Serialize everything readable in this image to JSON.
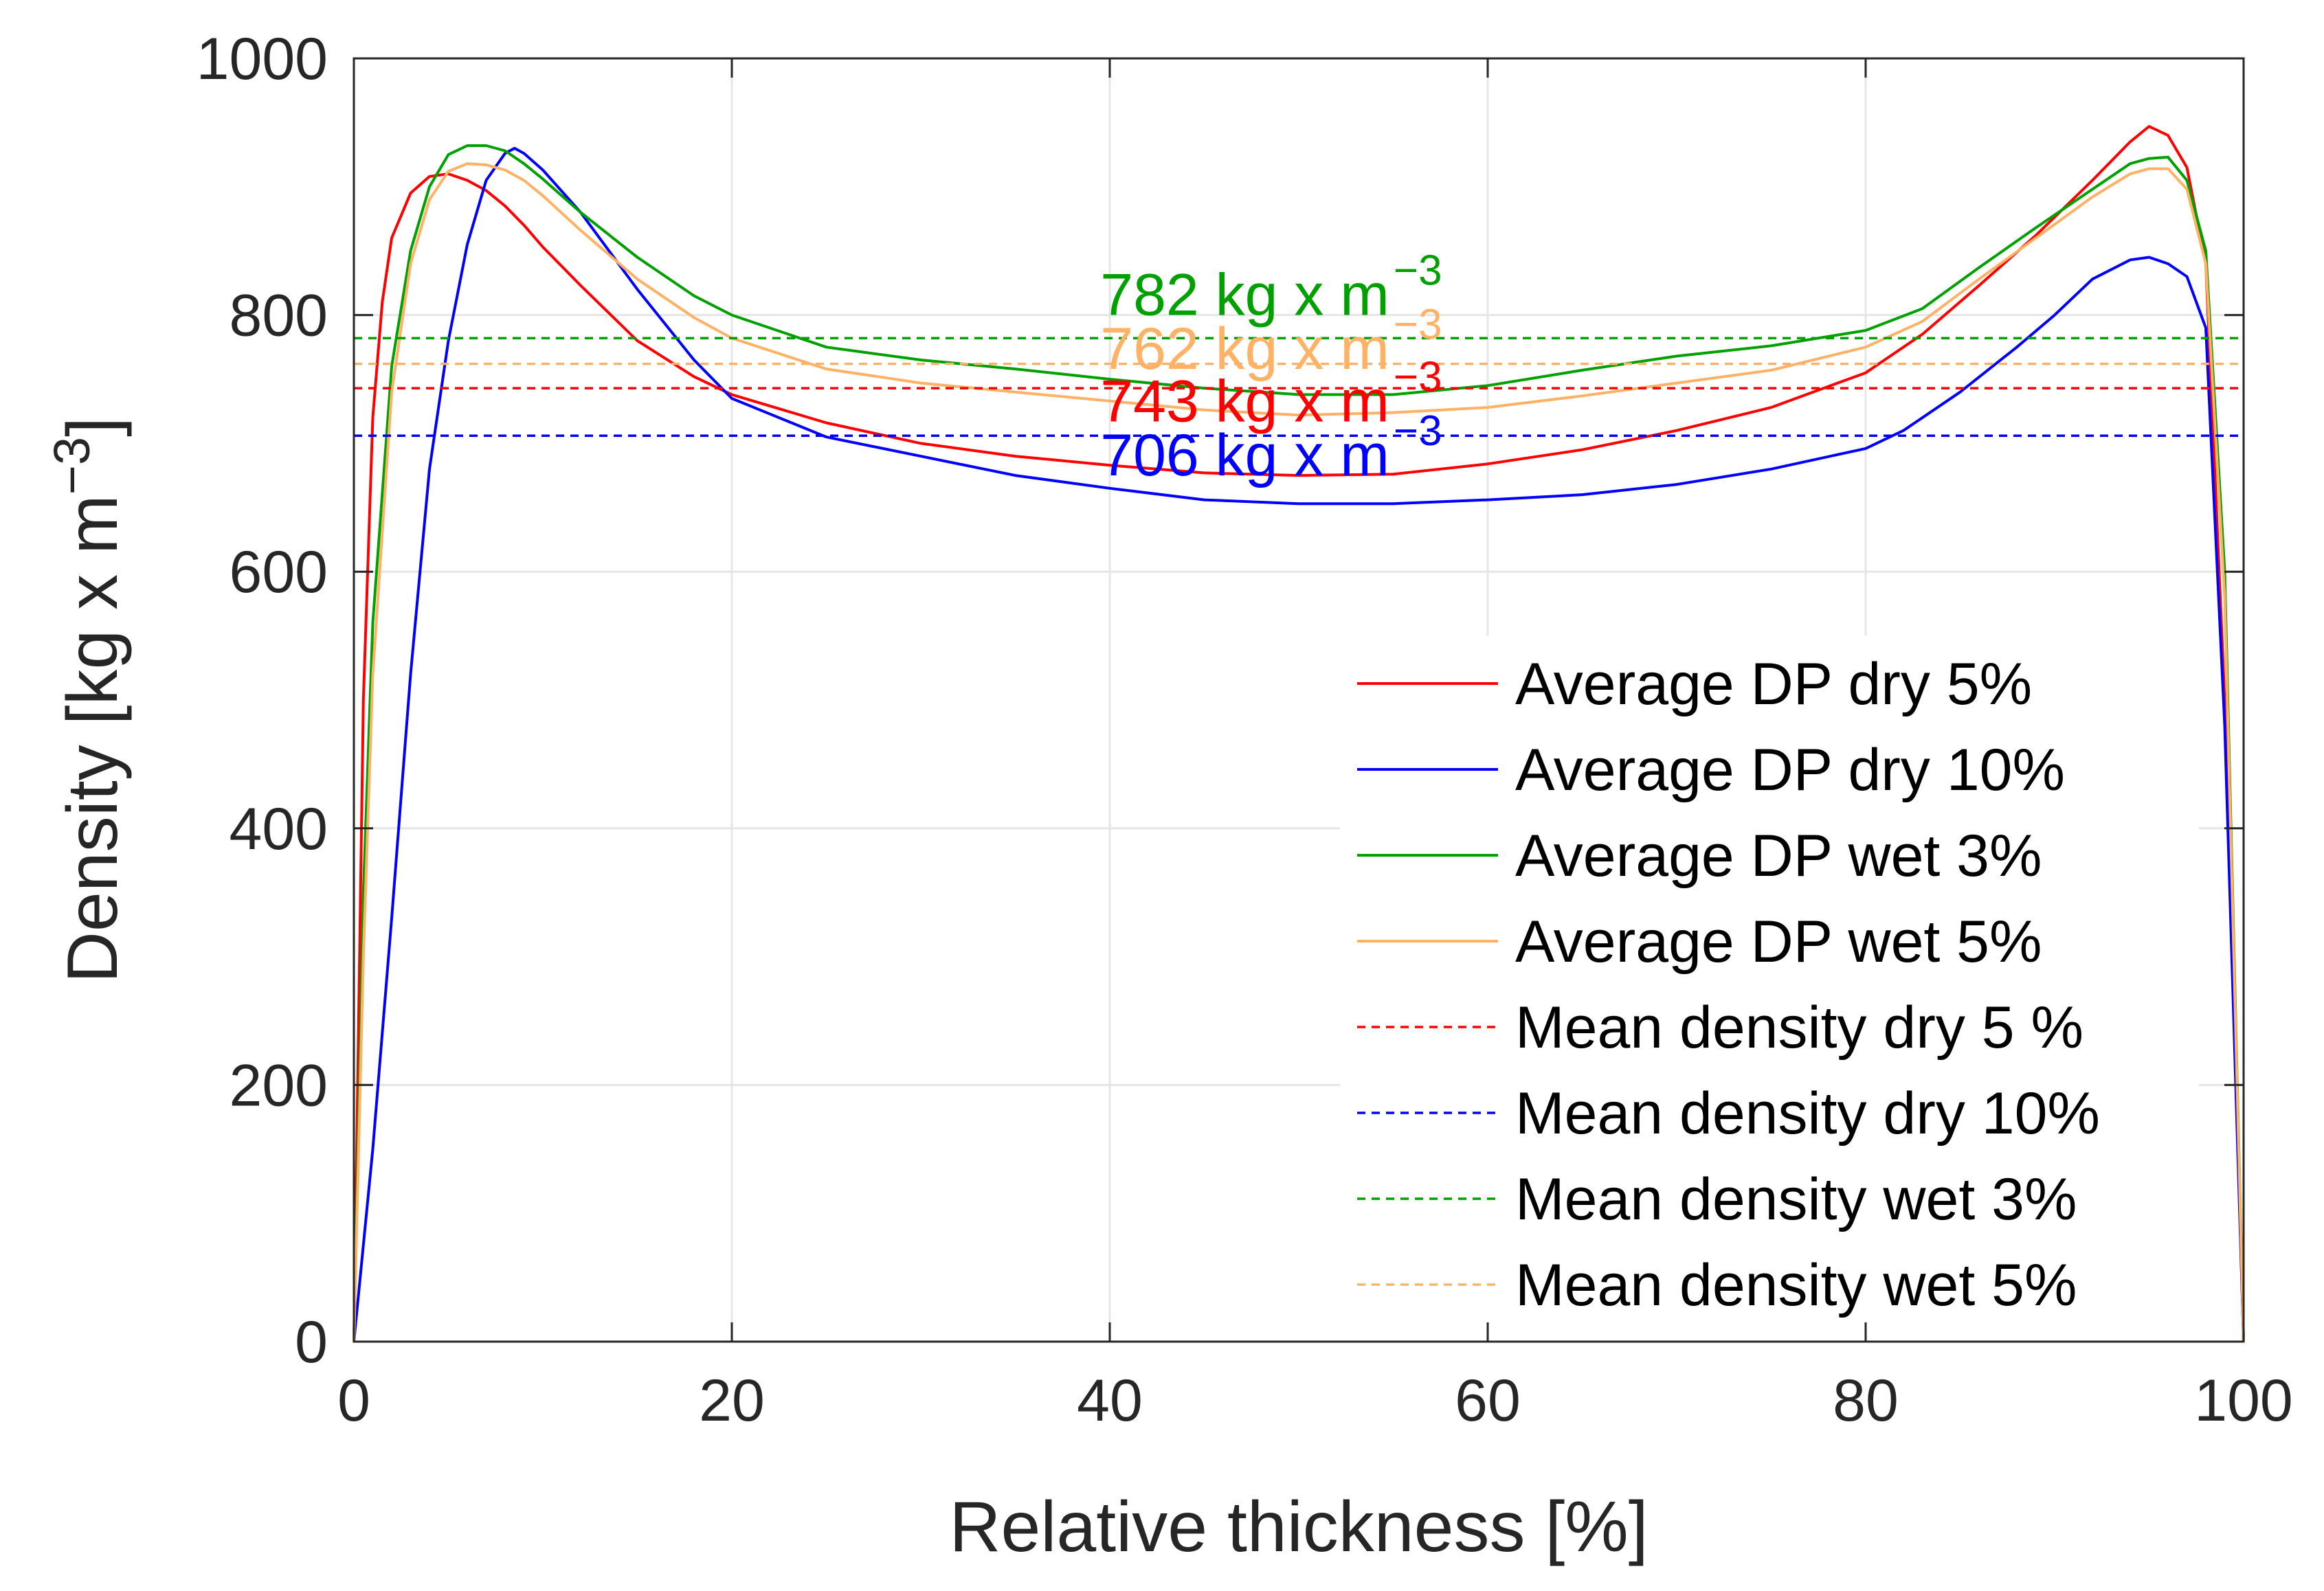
{
  "chart_data": {
    "type": "line",
    "title": "",
    "xlabel": "Relative thickness [%]",
    "ylabel": "Density [kg x m",
    "ylabel_sup": "−3",
    "ylabel_close": "]",
    "xlim": [
      0,
      100
    ],
    "ylim": [
      0,
      1000
    ],
    "xticks": [
      0,
      20,
      40,
      60,
      80,
      100
    ],
    "yticks": [
      0,
      200,
      400,
      600,
      800,
      1000
    ],
    "xtick_labels": [
      "0",
      "20",
      "40",
      "60",
      "80",
      "100"
    ],
    "ytick_labels": [
      "0",
      "200",
      "400",
      "600",
      "800",
      "1000"
    ],
    "grid": true,
    "legend_position": "lower-right",
    "series": [
      {
        "name": "Average DP dry 5%",
        "color": "#ff0000",
        "style": "solid",
        "x": [
          0,
          0.5,
          1,
          1.5,
          2,
          3,
          4,
          5,
          6,
          7,
          8,
          9,
          10,
          12,
          15,
          18,
          20,
          25,
          30,
          35,
          40,
          45,
          50,
          55,
          60,
          65,
          70,
          75,
          80,
          83,
          86,
          89,
          92,
          94,
          95,
          96,
          97,
          98,
          99,
          100
        ],
        "y": [
          0,
          500,
          720,
          810,
          860,
          895,
          908,
          910,
          905,
          897,
          885,
          870,
          853,
          823,
          780,
          752,
          738,
          716,
          700,
          690,
          683,
          677,
          675,
          676,
          684,
          695,
          710,
          728,
          755,
          785,
          823,
          862,
          905,
          935,
          947,
          940,
          915,
          840,
          500,
          0
        ]
      },
      {
        "name": "Average DP dry 10%",
        "color": "#0000ff",
        "style": "solid",
        "x": [
          0,
          1,
          2,
          3,
          4,
          5,
          6,
          7,
          8,
          8.5,
          9,
          10,
          12,
          15,
          18,
          20,
          25,
          30,
          35,
          40,
          45,
          50,
          55,
          60,
          65,
          70,
          75,
          80,
          82,
          85,
          88,
          90,
          92,
          94,
          95,
          96,
          97,
          98,
          99,
          100
        ],
        "y": [
          0,
          150,
          330,
          520,
          680,
          780,
          855,
          905,
          926,
          930,
          926,
          913,
          880,
          820,
          765,
          735,
          705,
          690,
          675,
          665,
          656,
          653,
          653,
          656,
          660,
          668,
          680,
          696,
          710,
          740,
          775,
          800,
          828,
          843,
          845,
          840,
          830,
          790,
          480,
          0
        ]
      },
      {
        "name": "Average DP wet 3%",
        "color": "#00a000",
        "style": "solid",
        "x": [
          0,
          0.5,
          1,
          2,
          3,
          4,
          5,
          6,
          7,
          8,
          9,
          10,
          12,
          15,
          18,
          20,
          25,
          30,
          35,
          40,
          45,
          50,
          55,
          60,
          65,
          70,
          75,
          80,
          83,
          86,
          89,
          92,
          94,
          95,
          96,
          97,
          98,
          99,
          100
        ],
        "y": [
          0,
          350,
          560,
          760,
          850,
          900,
          925,
          932,
          932,
          928,
          918,
          906,
          880,
          845,
          815,
          800,
          775,
          765,
          758,
          750,
          743,
          738,
          738,
          745,
          757,
          768,
          776,
          788,
          805,
          837,
          868,
          898,
          918,
          922,
          923,
          905,
          850,
          600,
          0
        ]
      },
      {
        "name": "Average DP wet 5%",
        "color": "#ffb266",
        "style": "solid",
        "x": [
          0,
          0.5,
          1,
          2,
          3,
          4,
          5,
          6,
          7,
          8,
          9,
          10,
          12,
          15,
          18,
          20,
          25,
          30,
          35,
          40,
          45,
          50,
          55,
          60,
          65,
          70,
          75,
          80,
          83,
          86,
          89,
          92,
          94,
          95,
          96,
          97,
          98,
          99,
          100
        ],
        "y": [
          0,
          300,
          520,
          740,
          840,
          890,
          912,
          918,
          917,
          913,
          905,
          893,
          866,
          828,
          798,
          782,
          758,
          747,
          740,
          733,
          726,
          722,
          724,
          728,
          737,
          747,
          757,
          775,
          795,
          828,
          860,
          892,
          910,
          914,
          914,
          898,
          840,
          580,
          0
        ]
      },
      {
        "name": "Mean density dry 5 %",
        "color": "#ff0000",
        "style": "dashed",
        "x": [
          0,
          100
        ],
        "y": [
          743,
          743
        ]
      },
      {
        "name": "Mean density dry 10%",
        "color": "#0000ff",
        "style": "dashed",
        "x": [
          0,
          100
        ],
        "y": [
          706,
          706
        ]
      },
      {
        "name": "Mean density wet 3%",
        "color": "#00a000",
        "style": "dashed",
        "x": [
          0,
          100
        ],
        "y": [
          782,
          782
        ]
      },
      {
        "name": "Mean density wet 5%",
        "color": "#ffb266",
        "style": "dashed",
        "x": [
          0,
          100
        ],
        "y": [
          762,
          762
        ]
      }
    ],
    "annotations": [
      {
        "text": "782 kg x m",
        "sup": "−3",
        "color": "#00a000",
        "x": 39.5,
        "y": 800
      },
      {
        "text": "762 kg x m",
        "sup": "−3",
        "color": "#ffb266",
        "x": 39.5,
        "y": 758
      },
      {
        "text": "743 kg x m",
        "sup": "−3",
        "color": "#ff0000",
        "x": 39.5,
        "y": 717
      },
      {
        "text": "706 kg x m",
        "sup": "−3",
        "color": "#0000ff",
        "x": 39.5,
        "y": 675
      }
    ]
  }
}
